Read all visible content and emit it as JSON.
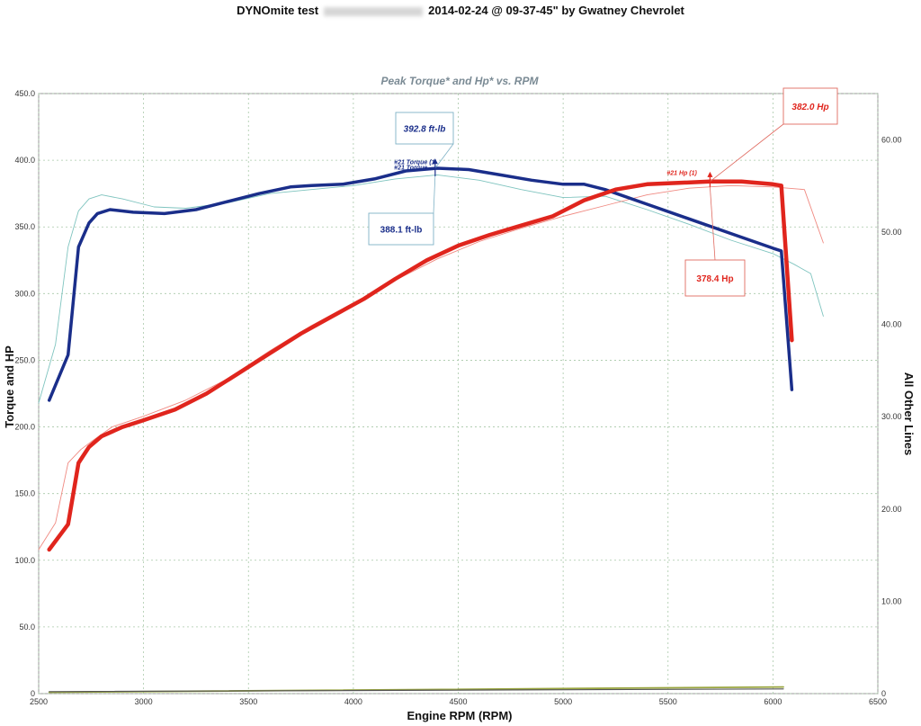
{
  "header": {
    "title_prefix": "DYNOmite test",
    "title_suffix": "2014-02-24 @ 09-37-45\" by Gwatney Chevrolet"
  },
  "chart_data": {
    "type": "line",
    "title": "Peak Torque* and Hp* vs. RPM",
    "xlabel": "Engine RPM (RPM)",
    "ylabel": "Torque and HP",
    "y2label": "All Other Lines",
    "xlim": [
      2500,
      6500
    ],
    "ylim": [
      0,
      450
    ],
    "y2lim": [
      0,
      65
    ],
    "x_ticks": [
      "2500",
      "3000",
      "3500",
      "4000",
      "4500",
      "5000",
      "5500",
      "6000",
      "6500"
    ],
    "y_ticks": [
      "0",
      "50.0",
      "100.0",
      "150.0",
      "200.0",
      "250.0",
      "300.0",
      "350.0",
      "400.0",
      "450.0"
    ],
    "y2_ticks": [
      "0",
      "10.00",
      "20.00",
      "30.00",
      "40.00",
      "50.00",
      "60.00"
    ],
    "grid": true,
    "series": [
      {
        "role": "torque-main",
        "color": "#1a2e8a",
        "x": [
          2550,
          2640,
          2690,
          2740,
          2780,
          2840,
          2950,
          3100,
          3250,
          3400,
          3550,
          3700,
          3800,
          3950,
          4100,
          4250,
          4400,
          4550,
          4700,
          4850,
          5000,
          5100,
          5200,
          5400,
          5600,
          5800,
          6000,
          6040,
          6090
        ],
        "y": [
          220,
          254,
          335,
          353,
          360,
          363,
          361,
          360,
          363,
          369,
          375,
          380,
          381,
          382,
          386,
          392,
          394,
          393,
          389,
          385,
          382,
          382,
          378,
          367,
          356,
          345,
          334,
          332,
          228
        ]
      },
      {
        "role": "torque-compare",
        "color": "#7fc4bf",
        "x": [
          2500,
          2580,
          2640,
          2690,
          2740,
          2800,
          2900,
          3050,
          3200,
          3400,
          3600,
          3800,
          4000,
          4200,
          4400,
          4600,
          4800,
          5000,
          5200,
          5400,
          5600,
          5800,
          6000,
          6100,
          6180,
          6240
        ],
        "y": [
          218,
          262,
          335,
          362,
          371,
          374,
          371,
          365,
          364,
          368,
          375,
          378,
          381,
          386,
          389,
          385,
          378,
          372,
          373,
          363,
          352,
          340,
          330,
          322,
          315,
          283
        ]
      },
      {
        "role": "hp-main",
        "color": "#e0251d",
        "x": [
          2550,
          2640,
          2690,
          2740,
          2800,
          2900,
          3000,
          3150,
          3300,
          3450,
          3600,
          3750,
          3900,
          4050,
          4200,
          4350,
          4500,
          4650,
          4800,
          4950,
          5100,
          5250,
          5400,
          5550,
          5700,
          5850,
          6000,
          6040,
          6090
        ],
        "y": [
          108,
          127,
          173,
          185,
          193,
          200,
          205,
          213,
          225,
          240,
          255,
          270,
          283,
          296,
          311,
          325,
          336,
          344,
          351,
          358,
          370,
          378,
          382,
          383,
          384,
          384,
          382,
          381,
          265
        ]
      },
      {
        "role": "hp-compare",
        "color": "#f08a82",
        "x": [
          2500,
          2580,
          2640,
          2700,
          2760,
          2850,
          3000,
          3200,
          3400,
          3600,
          3800,
          4000,
          4200,
          4400,
          4600,
          4800,
          5000,
          5200,
          5400,
          5600,
          5800,
          6000,
          6150,
          6240
        ],
        "y": [
          108,
          128,
          173,
          183,
          190,
          200,
          208,
          220,
          236,
          257,
          276,
          293,
          310,
          326,
          339,
          349,
          358,
          366,
          374,
          379,
          381,
          380,
          378,
          338
        ]
      },
      {
        "role": "baseline-green",
        "color": "#9aa640",
        "x": [
          2550,
          6050
        ],
        "y": [
          1,
          5
        ]
      },
      {
        "role": "baseline-gray",
        "color": "#555555",
        "x": [
          2550,
          6050
        ],
        "y": [
          1.5,
          3.5
        ]
      }
    ],
    "annotations": [
      {
        "name": "torque-peak-label",
        "text": "392.8 ft-lb",
        "color": "#1a2e8a",
        "italic": true,
        "point": [
          4390,
          394
        ]
      },
      {
        "name": "torque-compare-label",
        "text": "388.1 ft-lb",
        "color": "#1a2e8a",
        "italic": false,
        "point": [
          4390,
          389
        ]
      },
      {
        "name": "hp-peak-label",
        "text": "382.0 Hp",
        "color": "#e0251d",
        "italic": true,
        "point": [
          5700,
          384
        ]
      },
      {
        "name": "hp-compare-label",
        "text": "378.4 Hp",
        "color": "#e0251d",
        "italic": false,
        "point": [
          5700,
          380
        ]
      }
    ],
    "series_tags": [
      {
        "name": "torque-tag",
        "text": "#21 Torque (1",
        "color": "#1a2e8a",
        "at": [
          4400,
          397
        ]
      },
      {
        "name": "torque-tag-2",
        "text": "#21 Torque",
        "color": "#1a2e8a",
        "at": [
          4400,
          393
        ]
      },
      {
        "name": "hp-tag",
        "text": "#21 Hp (1)",
        "color": "#e0251d",
        "at": [
          5700,
          389
        ]
      }
    ]
  }
}
